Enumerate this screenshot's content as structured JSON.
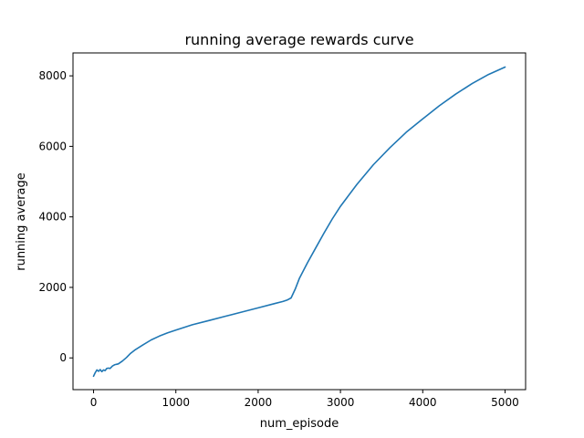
{
  "chart_data": {
    "type": "line",
    "title": "running average rewards curve",
    "xlabel": "num_episode",
    "ylabel": "running average",
    "xlim": [
      -250,
      5250
    ],
    "ylim": [
      -900,
      8650
    ],
    "xticks": [
      0,
      1000,
      2000,
      3000,
      4000,
      5000
    ],
    "yticks": [
      0,
      2000,
      4000,
      6000,
      8000
    ],
    "grid": false,
    "legend": "none",
    "series": [
      {
        "color": "#1f77b4",
        "x": [
          0,
          20,
          40,
          60,
          80,
          100,
          120,
          140,
          160,
          180,
          200,
          230,
          260,
          300,
          350,
          400,
          450,
          500,
          600,
          700,
          800,
          900,
          1000,
          1200,
          1400,
          1600,
          1800,
          2000,
          2200,
          2300,
          2350,
          2400,
          2450,
          2500,
          2600,
          2700,
          2800,
          2900,
          3000,
          3200,
          3400,
          3600,
          3800,
          4000,
          4200,
          4400,
          4600,
          4800,
          5000
        ],
        "y": [
          -520,
          -420,
          -340,
          -380,
          -330,
          -390,
          -340,
          -360,
          -300,
          -290,
          -300,
          -230,
          -190,
          -170,
          -90,
          10,
          130,
          220,
          370,
          510,
          620,
          710,
          790,
          940,
          1060,
          1180,
          1300,
          1420,
          1540,
          1600,
          1640,
          1700,
          1950,
          2250,
          2700,
          3120,
          3540,
          3940,
          4300,
          4920,
          5480,
          5960,
          6400,
          6780,
          7150,
          7480,
          7780,
          8040,
          8250
        ]
      }
    ]
  }
}
